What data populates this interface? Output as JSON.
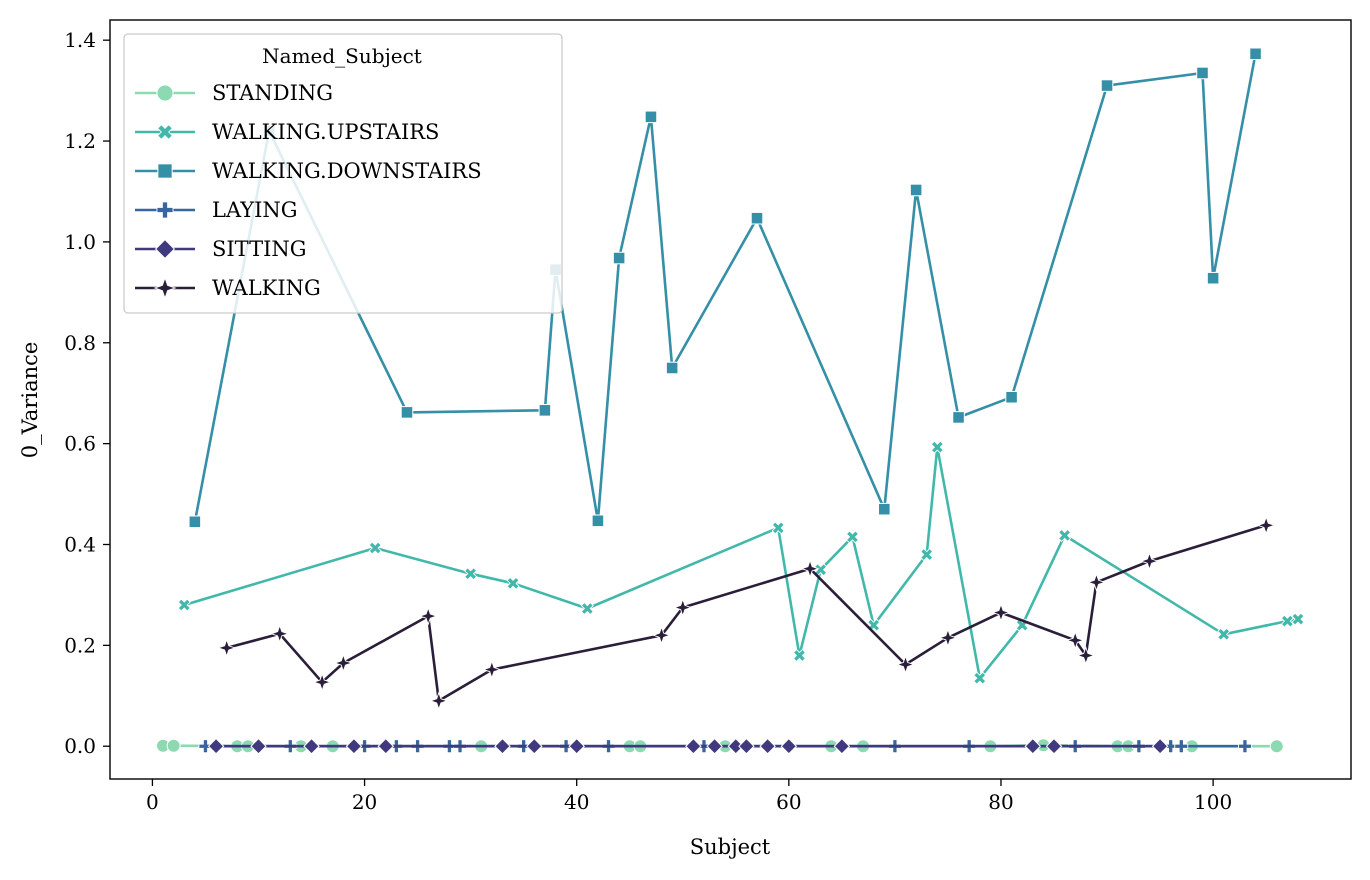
{
  "chart_data": {
    "type": "line",
    "xlabel": "Subject",
    "ylabel": "0_Variance",
    "xlim": [
      -4,
      113
    ],
    "ylim": [
      -0.065,
      1.44
    ],
    "xticks": [
      0,
      20,
      40,
      60,
      80,
      100
    ],
    "yticks": [
      0.0,
      0.2,
      0.4,
      0.6,
      0.8,
      1.0,
      1.2,
      1.4
    ],
    "xtick_labels": [
      "0",
      "20",
      "40",
      "60",
      "80",
      "100"
    ],
    "ytick_labels": [
      "0.0",
      "0.2",
      "0.4",
      "0.6",
      "0.8",
      "1.0",
      "1.2",
      "1.4"
    ],
    "grid": false,
    "legend": {
      "title": "Named_Subject",
      "placement": "top-left"
    },
    "series": [
      {
        "name": "STANDING",
        "color": "#8dd9b2",
        "marker": "circle",
        "x": [
          1,
          2,
          8,
          9,
          14,
          17,
          31,
          45,
          46,
          54,
          64,
          67,
          79,
          84,
          91,
          92,
          98,
          106
        ],
        "y": [
          0.001,
          0.001,
          0.0,
          0.0,
          0.0,
          0.0,
          0.0,
          0.0,
          0.0,
          0.0,
          0.0,
          0.0,
          0.0,
          0.002,
          0.0,
          0.0,
          0.0,
          0.0
        ]
      },
      {
        "name": "WALKING_UPSTAIRS",
        "color": "#42b8ab",
        "marker": "x",
        "x": [
          3,
          21,
          30,
          34,
          41,
          59,
          61,
          63,
          66,
          68,
          73,
          74,
          78,
          82,
          86,
          101,
          107,
          108
        ],
        "y": [
          0.28,
          0.393,
          0.342,
          0.323,
          0.273,
          0.433,
          0.18,
          0.35,
          0.415,
          0.24,
          0.38,
          0.593,
          0.135,
          0.24,
          0.418,
          0.222,
          0.248,
          0.252
        ]
      },
      {
        "name": "WALKING_DOWNSTAIRS",
        "color": "#348fa7",
        "marker": "square",
        "x": [
          4,
          11,
          24,
          37,
          38,
          42,
          44,
          47,
          49,
          57,
          69,
          72,
          76,
          81,
          90,
          99,
          100,
          104
        ],
        "y": [
          0.445,
          1.22,
          0.662,
          0.666,
          0.945,
          0.447,
          0.968,
          1.248,
          0.75,
          1.047,
          0.47,
          1.103,
          0.652,
          0.692,
          1.31,
          1.335,
          0.928,
          1.373
        ]
      },
      {
        "name": "LAYING",
        "color": "#37659e",
        "marker": "plus",
        "x": [
          5,
          13,
          20,
          23,
          25,
          28,
          29,
          35,
          39,
          43,
          52,
          70,
          77,
          87,
          93,
          96,
          97,
          103
        ],
        "y": [
          0.0,
          0.0,
          0.0,
          0.0,
          0.0,
          0.0,
          0.0,
          0.0,
          0.0,
          0.0,
          0.0,
          0.0,
          0.0,
          0.0,
          0.0,
          0.0,
          0.0,
          0.0
        ]
      },
      {
        "name": "SITTING",
        "color": "#40397e",
        "marker": "diamond",
        "x": [
          6,
          10,
          15,
          19,
          22,
          33,
          36,
          40,
          51,
          53,
          55,
          56,
          58,
          60,
          65,
          83,
          85,
          95
        ],
        "y": [
          0.0,
          0.0,
          0.0,
          0.0,
          0.0,
          0.0,
          0.0,
          0.0,
          0.0,
          0.0,
          0.0,
          0.0,
          0.0,
          0.0,
          0.0,
          0.0,
          0.0,
          0.0
        ]
      },
      {
        "name": "WALKING",
        "color": "#2a1e3a",
        "marker": "star4",
        "x": [
          7,
          12,
          16,
          18,
          26,
          27,
          32,
          48,
          50,
          62,
          71,
          75,
          80,
          87,
          88,
          89,
          94,
          105
        ],
        "y": [
          0.195,
          0.223,
          0.127,
          0.165,
          0.258,
          0.09,
          0.152,
          0.22,
          0.275,
          0.352,
          0.162,
          0.215,
          0.265,
          0.21,
          0.18,
          0.325,
          0.367,
          0.438
        ]
      }
    ]
  }
}
